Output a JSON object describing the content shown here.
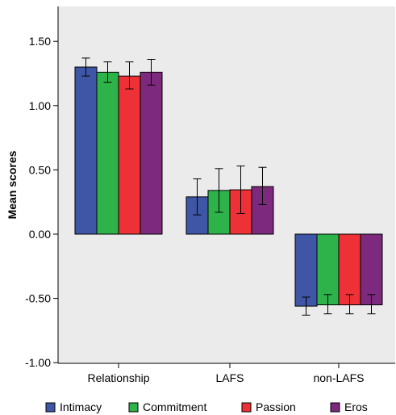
{
  "chart_data": {
    "type": "bar",
    "title": "",
    "xlabel": "",
    "ylabel": "Mean scores",
    "ylim": [
      -1.0,
      1.75
    ],
    "yticks": [
      "1.50",
      "1.00",
      "0.50",
      "0.00",
      "-0.50",
      "-1.00"
    ],
    "ytick_values": [
      1.5,
      1.0,
      0.5,
      0.0,
      -0.5,
      -1.0
    ],
    "categories": [
      "Relationship",
      "LAFS",
      "non-LAFS"
    ],
    "grid": false,
    "legend_position": "bottom",
    "series": [
      {
        "name": "Intimacy",
        "color": "#3F56A6",
        "values": [
          1.3,
          0.29,
          -0.56
        ],
        "err_low": [
          1.23,
          0.15,
          -0.63
        ],
        "err_high": [
          1.37,
          0.43,
          -0.49
        ]
      },
      {
        "name": "Commitment",
        "color": "#2DB34A",
        "values": [
          1.26,
          0.34,
          -0.55
        ],
        "err_low": [
          1.18,
          0.17,
          -0.62
        ],
        "err_high": [
          1.34,
          0.51,
          -0.47
        ]
      },
      {
        "name": "Passion",
        "color": "#EE3136",
        "values": [
          1.23,
          0.345,
          -0.55
        ],
        "err_low": [
          1.13,
          0.16,
          -0.62
        ],
        "err_high": [
          1.34,
          0.53,
          -0.47
        ]
      },
      {
        "name": "Eros",
        "color": "#7D2A7E",
        "values": [
          1.26,
          0.37,
          -0.55
        ],
        "err_low": [
          1.16,
          0.23,
          -0.62
        ],
        "err_high": [
          1.36,
          0.52,
          -0.47
        ]
      }
    ]
  }
}
